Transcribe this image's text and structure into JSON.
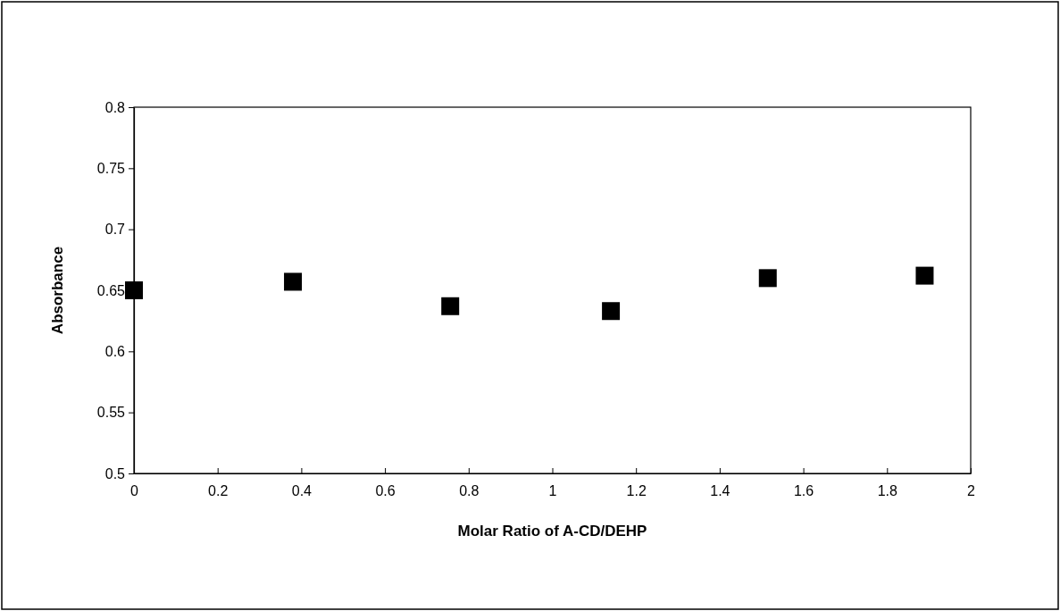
{
  "chart_data": {
    "type": "scatter",
    "xlabel": "Molar Ratio of A-CD/DEHP",
    "ylabel": "Absorbance",
    "x": [
      0,
      0.38,
      0.756,
      1.14,
      1.515,
      1.89
    ],
    "series": [
      {
        "color": "#000000",
        "values": [
          0.65,
          0.657,
          0.637,
          0.633,
          0.66,
          0.662
        ]
      }
    ],
    "marker": "square",
    "xlim": [
      0,
      2
    ],
    "xticks": [
      0,
      0.2,
      0.4,
      0.6,
      0.8,
      1,
      1.2,
      1.4,
      1.6,
      1.8,
      2
    ],
    "ylim": [
      0.5,
      0.8
    ],
    "yticks": [
      0.5,
      0.55,
      0.6,
      0.65,
      0.7,
      0.75,
      0.8
    ],
    "grid": false
  }
}
